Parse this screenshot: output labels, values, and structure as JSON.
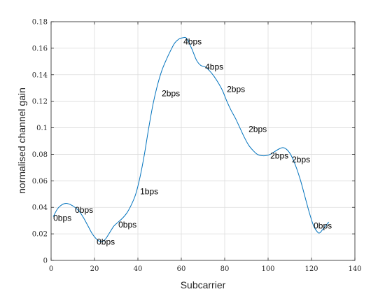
{
  "chart_data": {
    "type": "line",
    "xlabel": "Subcarrier",
    "ylabel": "normalised channel gain",
    "xlim": [
      0,
      140
    ],
    "ylim": [
      0,
      0.18
    ],
    "xticks": [
      0,
      20,
      40,
      60,
      80,
      100,
      120,
      140
    ],
    "xtick_labels": [
      "0",
      "20",
      "40",
      "60",
      "80",
      "100",
      "120",
      "140"
    ],
    "yticks": [
      0,
      0.02,
      0.04,
      0.06,
      0.08,
      0.1,
      0.12,
      0.14,
      0.16,
      0.18
    ],
    "ytick_labels": [
      "0",
      "0.02",
      "0.04",
      "0.06",
      "0.08",
      "0.1",
      "0.12",
      "0.14",
      "0.16",
      "0.18"
    ],
    "grid": true,
    "line_color": "#0072bd",
    "series": [
      {
        "x": [
          1,
          3,
          5,
          7,
          9,
          11,
          13,
          15,
          17,
          19,
          21,
          23,
          25,
          27,
          29,
          31,
          33,
          35,
          37,
          39,
          41,
          43,
          45,
          47,
          49,
          51,
          53,
          55,
          57,
          59,
          61,
          62,
          63,
          65,
          67,
          69,
          71,
          73,
          75,
          77,
          79,
          81,
          83,
          85,
          87,
          89,
          91,
          93,
          95,
          97,
          99,
          101,
          103,
          105,
          107,
          109,
          111,
          113,
          115,
          117,
          119,
          121,
          123,
          124,
          125,
          127,
          128
        ],
        "y": [
          0.033,
          0.039,
          0.042,
          0.043,
          0.042,
          0.04,
          0.037,
          0.032,
          0.026,
          0.02,
          0.016,
          0.014,
          0.016,
          0.021,
          0.026,
          0.029,
          0.032,
          0.036,
          0.042,
          0.05,
          0.063,
          0.08,
          0.1,
          0.118,
          0.132,
          0.143,
          0.151,
          0.158,
          0.164,
          0.167,
          0.168,
          0.168,
          0.166,
          0.159,
          0.151,
          0.147,
          0.146,
          0.143,
          0.139,
          0.134,
          0.128,
          0.12,
          0.113,
          0.107,
          0.1,
          0.093,
          0.087,
          0.083,
          0.08,
          0.079,
          0.079,
          0.08,
          0.082,
          0.084,
          0.085,
          0.083,
          0.078,
          0.07,
          0.06,
          0.048,
          0.036,
          0.026,
          0.021,
          0.021,
          0.023,
          0.027,
          0.029
        ]
      }
    ],
    "annotations": [
      {
        "x": 1,
        "y": 0.032,
        "text": "0bps"
      },
      {
        "x": 11,
        "y": 0.038,
        "text": "0bps"
      },
      {
        "x": 21,
        "y": 0.014,
        "text": "0bps"
      },
      {
        "x": 31,
        "y": 0.027,
        "text": "0bps"
      },
      {
        "x": 41,
        "y": 0.052,
        "text": "1bps"
      },
      {
        "x": 51,
        "y": 0.126,
        "text": "2bps"
      },
      {
        "x": 61,
        "y": 0.165,
        "text": "4bps"
      },
      {
        "x": 71,
        "y": 0.146,
        "text": "4bps"
      },
      {
        "x": 81,
        "y": 0.129,
        "text": "2bps"
      },
      {
        "x": 91,
        "y": 0.099,
        "text": "2bps"
      },
      {
        "x": 101,
        "y": 0.079,
        "text": "2bps"
      },
      {
        "x": 111,
        "y": 0.076,
        "text": "2bps"
      },
      {
        "x": 121,
        "y": 0.026,
        "text": "0bps"
      }
    ]
  }
}
